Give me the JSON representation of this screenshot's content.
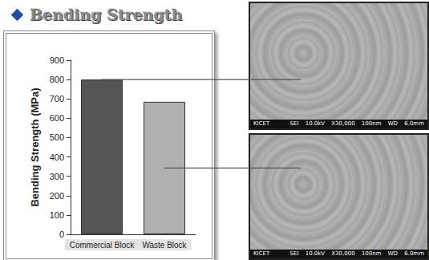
{
  "header": {
    "title": "Bending Strength"
  },
  "chart_data": {
    "type": "bar",
    "ylabel": "Bending Strength (MPa)",
    "categories": [
      "Commercial Block",
      "Waste Block"
    ],
    "values": [
      800,
      685
    ],
    "colors": [
      "#555555",
      "#b0b0b0"
    ],
    "ylim": [
      0,
      900
    ],
    "yticks": [
      0,
      100,
      200,
      300,
      400,
      500,
      600,
      700,
      800,
      900
    ],
    "grid": false
  },
  "micrographs": [
    {
      "left": "KICET",
      "right": [
        "SEI",
        "10.0kV",
        "X30,000",
        "100nm",
        "WD 6.0mm"
      ]
    },
    {
      "left": "KICET",
      "right": [
        "SEI",
        "10.0kV",
        "X30,000",
        "100nm",
        "WD 6.0mm"
      ]
    }
  ]
}
